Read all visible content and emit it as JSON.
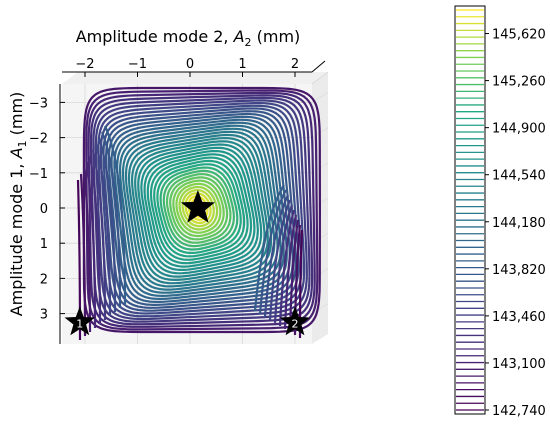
{
  "chart_data": {
    "type": "contour",
    "xlabel_text": "Amplitude mode 2, ",
    "xlabel_var": "A",
    "xlabel_sub": "2",
    "xlabel_unit": " (mm)",
    "ylabel_text": "Amplitude mode 1, ",
    "ylabel_var": "A",
    "ylabel_sub": "1",
    "ylabel_unit": " (mm)",
    "x_ticks": [
      "−2",
      "−1",
      "0",
      "1",
      "2"
    ],
    "x_tick_values": [
      -2,
      -1,
      0,
      1,
      2
    ],
    "y_ticks": [
      "−3",
      "−2",
      "−1",
      "0",
      "1",
      "2",
      "3"
    ],
    "y_tick_values": [
      -3,
      -2,
      -1,
      0,
      1,
      2,
      3
    ],
    "xlim": [
      -2.4,
      2.4
    ],
    "ylim": [
      -3.5,
      3.5
    ],
    "y_inverted": true,
    "colormap": "viridis",
    "levels_min": 142740,
    "levels_max": 145800,
    "maximum_point": {
      "A2": 0.15,
      "A1": 0.0
    },
    "markers": [
      {
        "label": "",
        "A2": 0.15,
        "A1": 0.0
      },
      {
        "label": "1",
        "A2": -2.1,
        "A1": 3.25
      },
      {
        "label": "2",
        "A2": 2.0,
        "A1": 3.25
      }
    ],
    "colorbar_ticks": [
      "145,620",
      "145,260",
      "144,900",
      "144,540",
      "144,180",
      "143,820",
      "143,460",
      "143,100",
      "142,740"
    ],
    "colorbar_tick_values": [
      145620,
      145260,
      144900,
      144540,
      144180,
      143820,
      143460,
      143100,
      142740
    ]
  }
}
